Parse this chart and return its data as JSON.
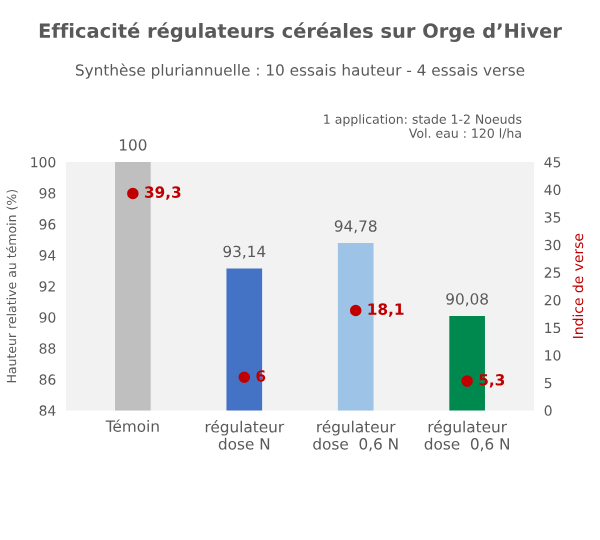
{
  "chart_data": {
    "type": "bar",
    "title": "Efficacité régulateurs céréales sur Orge d’Hiver",
    "subtitle": "Synthèse pluriannuelle : 10 essais hauteur - 4 essais verse",
    "annotations": [
      "1 application: stade 1-2 Noeuds\nVol. eau : 120 l/ha"
    ],
    "categories": [
      "Témoin",
      "régulateur\ndose N",
      "régulateur\ndose  0,6 N",
      "régulateur\ndose  0,6 N"
    ],
    "ylabel": "Hauteur relative au témoin (%)",
    "y2label": "Indice de verse",
    "ylim": [
      84,
      100
    ],
    "yticks": [
      84,
      86,
      88,
      90,
      92,
      94,
      96,
      98,
      100
    ],
    "y2lim": [
      0,
      45
    ],
    "y2ticks": [
      0,
      5,
      10,
      15,
      20,
      25,
      30,
      35,
      40,
      45
    ],
    "grid": false,
    "legend": false,
    "series": [
      {
        "colors": [
          "#bfbfbf",
          "#4472c4",
          "#9dc3e6",
          "#00894f"
        ],
        "values": [
          100,
          93.14,
          94.78,
          90.08
        ],
        "value_labels": [
          "100",
          "93,14",
          "94,78",
          "90,08"
        ]
      },
      {
        "type": "scatter",
        "axis": "y2",
        "color": "#c00000",
        "marker": "circle",
        "values": [
          39.3,
          6,
          18.1,
          5.3
        ],
        "value_labels": [
          "39,3",
          "6",
          "18,1",
          "5,3"
        ]
      }
    ]
  }
}
